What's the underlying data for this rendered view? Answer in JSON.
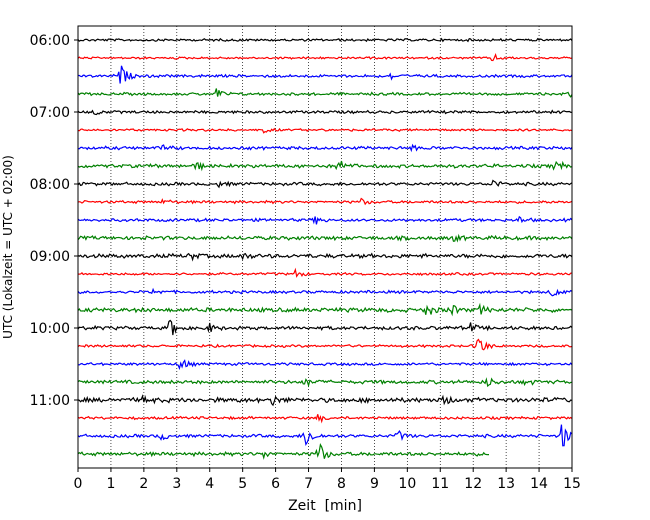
{
  "chart_data": {
    "type": "line",
    "title": "",
    "xlabel": "Zeit  [min]",
    "ylabel": "UTC (Lokalzeit = UTC + 02:00)",
    "xlim": [
      0,
      15
    ],
    "x_ticks": [
      0,
      1,
      2,
      3,
      4,
      5,
      6,
      7,
      8,
      9,
      10,
      11,
      12,
      13,
      14,
      15
    ],
    "x_tick_labels": [
      "0",
      "1",
      "2",
      "3",
      "4",
      "5",
      "6",
      "7",
      "8",
      "9",
      "10",
      "11",
      "12",
      "13",
      "14",
      "15"
    ],
    "y_tick_labels": [
      "06:00",
      "07:00",
      "08:00",
      "09:00",
      "10:00",
      "11:00"
    ],
    "y_tick_rows": [
      0,
      4,
      8,
      12,
      16,
      20
    ],
    "grid": "vertical-dotted",
    "trace_interval_min": 15,
    "colors": [
      "#000000",
      "#ff0000",
      "#0000ff",
      "#008000"
    ],
    "traces": [
      {
        "start": "06:00",
        "color": "#000000",
        "amp": 1.4,
        "end": 15,
        "events": []
      },
      {
        "start": "06:15",
        "color": "#ff0000",
        "amp": 1.2,
        "end": 15,
        "events": [
          [
            12.6,
            4
          ]
        ]
      },
      {
        "start": "06:30",
        "color": "#0000ff",
        "amp": 1.6,
        "end": 15,
        "events": [
          [
            1.3,
            12
          ],
          [
            9.5,
            3
          ]
        ]
      },
      {
        "start": "06:45",
        "color": "#008000",
        "amp": 1.5,
        "end": 15,
        "events": [
          [
            4.2,
            6
          ],
          [
            14.9,
            3
          ]
        ]
      },
      {
        "start": "07:00",
        "color": "#000000",
        "amp": 1.6,
        "end": 15,
        "events": [
          [
            0.5,
            3
          ]
        ]
      },
      {
        "start": "07:15",
        "color": "#ff0000",
        "amp": 1.3,
        "end": 15,
        "events": [
          [
            5.6,
            3
          ]
        ]
      },
      {
        "start": "07:30",
        "color": "#0000ff",
        "amp": 1.8,
        "end": 15,
        "events": [
          [
            2.6,
            3
          ],
          [
            10.1,
            3
          ]
        ]
      },
      {
        "start": "07:45",
        "color": "#008000",
        "amp": 2.0,
        "end": 15,
        "events": [
          [
            3.6,
            4
          ],
          [
            7.9,
            8
          ],
          [
            14.5,
            7
          ]
        ]
      },
      {
        "start": "08:00",
        "color": "#000000",
        "amp": 1.8,
        "end": 15,
        "events": [
          [
            4.3,
            3
          ],
          [
            12.6,
            4
          ]
        ]
      },
      {
        "start": "08:15",
        "color": "#ff0000",
        "amp": 1.5,
        "end": 15,
        "events": [
          [
            2.6,
            3
          ],
          [
            8.6,
            3
          ]
        ]
      },
      {
        "start": "08:30",
        "color": "#0000ff",
        "amp": 1.7,
        "end": 15,
        "events": [
          [
            7.2,
            4
          ],
          [
            13.4,
            3
          ]
        ]
      },
      {
        "start": "08:45",
        "color": "#008000",
        "amp": 2.2,
        "end": 15,
        "events": [
          [
            11.4,
            3
          ]
        ]
      },
      {
        "start": "09:00",
        "color": "#000000",
        "amp": 2.3,
        "end": 15,
        "events": [
          [
            3.4,
            4
          ],
          [
            5.0,
            3
          ]
        ]
      },
      {
        "start": "09:15",
        "color": "#ff0000",
        "amp": 1.4,
        "end": 15,
        "events": [
          [
            6.6,
            4
          ]
        ]
      },
      {
        "start": "09:30",
        "color": "#0000ff",
        "amp": 1.6,
        "end": 15,
        "events": [
          [
            2.3,
            3
          ],
          [
            14.4,
            6
          ]
        ]
      },
      {
        "start": "09:45",
        "color": "#008000",
        "amp": 2.4,
        "end": 15,
        "events": [
          [
            10.6,
            7
          ],
          [
            11.3,
            6
          ],
          [
            12.2,
            4
          ]
        ]
      },
      {
        "start": "10:00",
        "color": "#000000",
        "amp": 2.0,
        "end": 15,
        "events": [
          [
            2.8,
            11
          ],
          [
            4.0,
            4
          ],
          [
            11.9,
            5
          ]
        ]
      },
      {
        "start": "10:15",
        "color": "#ff0000",
        "amp": 1.4,
        "end": 15,
        "events": [
          [
            12.1,
            18
          ]
        ]
      },
      {
        "start": "10:30",
        "color": "#0000ff",
        "amp": 1.5,
        "end": 15,
        "events": [
          [
            3.1,
            8
          ]
        ]
      },
      {
        "start": "10:45",
        "color": "#008000",
        "amp": 2.0,
        "end": 15,
        "events": [
          [
            6.9,
            5
          ],
          [
            12.4,
            5
          ],
          [
            13.6,
            4
          ]
        ]
      },
      {
        "start": "11:00",
        "color": "#000000",
        "amp": 2.6,
        "end": 15,
        "events": [
          [
            2.0,
            4
          ],
          [
            5.9,
            5
          ],
          [
            11.1,
            4
          ]
        ]
      },
      {
        "start": "11:15",
        "color": "#ff0000",
        "amp": 1.5,
        "end": 15,
        "events": [
          [
            7.3,
            4
          ]
        ]
      },
      {
        "start": "11:30",
        "color": "#0000ff",
        "amp": 1.8,
        "end": 15,
        "events": [
          [
            2.5,
            5
          ],
          [
            6.9,
            14
          ],
          [
            9.7,
            6
          ],
          [
            14.7,
            16
          ]
        ]
      },
      {
        "start": "11:45",
        "color": "#008000",
        "amp": 2.0,
        "end": 12.5,
        "events": [
          [
            5.6,
            4
          ],
          [
            7.3,
            14
          ]
        ]
      }
    ]
  }
}
